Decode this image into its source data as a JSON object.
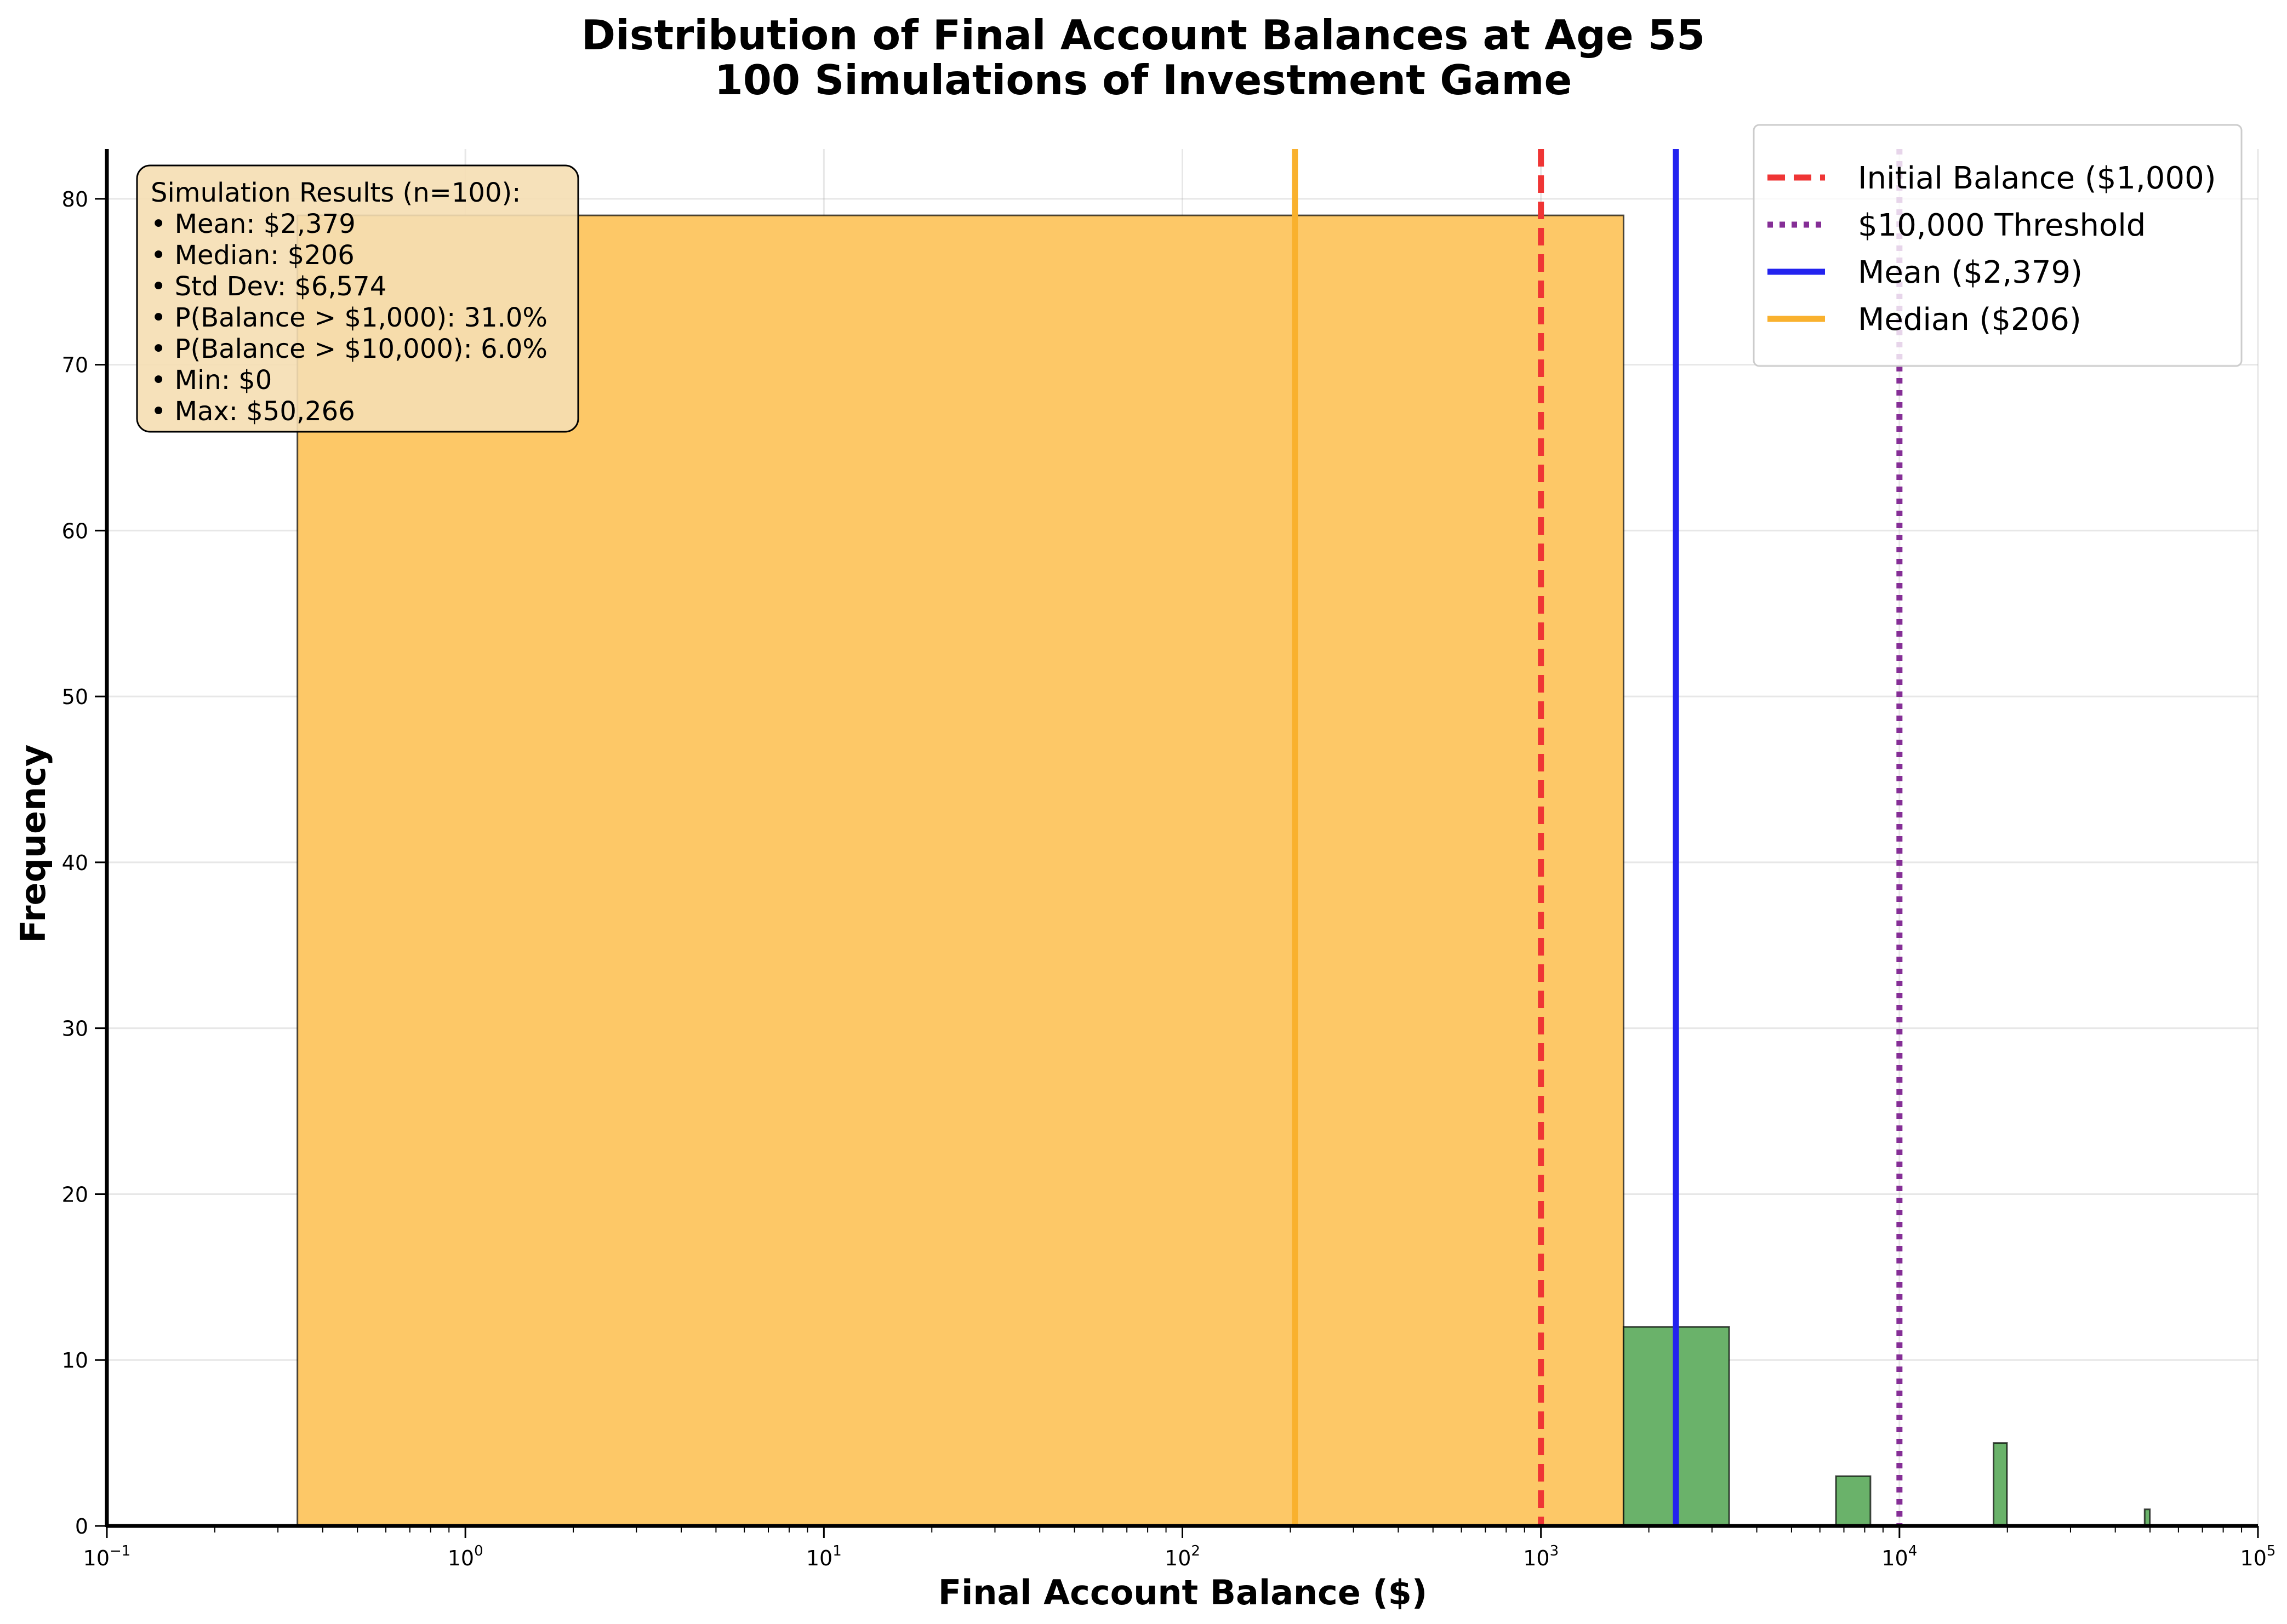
{
  "chart_data": {
    "type": "bar",
    "title_lines": [
      "Distribution of Final Account Balances at Age 55",
      "100 Simulations of Investment Game"
    ],
    "xlabel": "Final Account Balance ($)",
    "ylabel": "Frequency",
    "x_scale": "log",
    "xlim": [
      0.1,
      100000
    ],
    "ylim": [
      0,
      83
    ],
    "grid": true,
    "x_ticks": [
      {
        "base": "10",
        "exp": "−1",
        "value": 0.1
      },
      {
        "base": "10",
        "exp": "0",
        "value": 1
      },
      {
        "base": "10",
        "exp": "1",
        "value": 10
      },
      {
        "base": "10",
        "exp": "2",
        "value": 100
      },
      {
        "base": "10",
        "exp": "3",
        "value": 1000
      },
      {
        "base": "10",
        "exp": "4",
        "value": 10000
      },
      {
        "base": "10",
        "exp": "5",
        "value": 100000
      }
    ],
    "y_ticks": [
      "0",
      "10",
      "20",
      "30",
      "40",
      "50",
      "60",
      "70",
      "80"
    ],
    "bars": [
      {
        "x0": 0.34,
        "x1": 1700,
        "value": 79,
        "color": "#fdc867"
      },
      {
        "x0": 1700,
        "x1": 3350,
        "value": 12,
        "color": "#6ab26a"
      },
      {
        "x0": 6650,
        "x1": 8300,
        "value": 3,
        "color": "#6ab26a"
      },
      {
        "x0": 18300,
        "x1": 19950,
        "value": 5,
        "color": "#6ab26a"
      },
      {
        "x0": 48300,
        "x1": 49950,
        "value": 1,
        "color": "#6ab26a"
      }
    ],
    "reference_lines": [
      {
        "name": "Initial Balance ($1,000)",
        "x": 1000,
        "color": "#ef3535",
        "style": "dashed"
      },
      {
        "name": "$10,000 Threshold",
        "x": 10000,
        "color": "#852e96",
        "style": "dotted"
      },
      {
        "name": "Mean ($2,379)",
        "x": 2379,
        "color": "#2323ef",
        "style": "solid"
      },
      {
        "name": "Median ($206)",
        "x": 206,
        "color": "#f9b12e",
        "style": "solid"
      }
    ],
    "legend_position": "top-right",
    "stats_box": {
      "position": "top-left",
      "lines": [
        "Simulation Results (n=100):",
        "• Mean: $2,379",
        "• Median: $206",
        "• Std Dev: $6,574",
        "• P(Balance > $1,000): 31.0%",
        "• P(Balance > $10,000): 6.0%",
        "• Min: $0",
        "• Max: $50,266"
      ]
    }
  }
}
